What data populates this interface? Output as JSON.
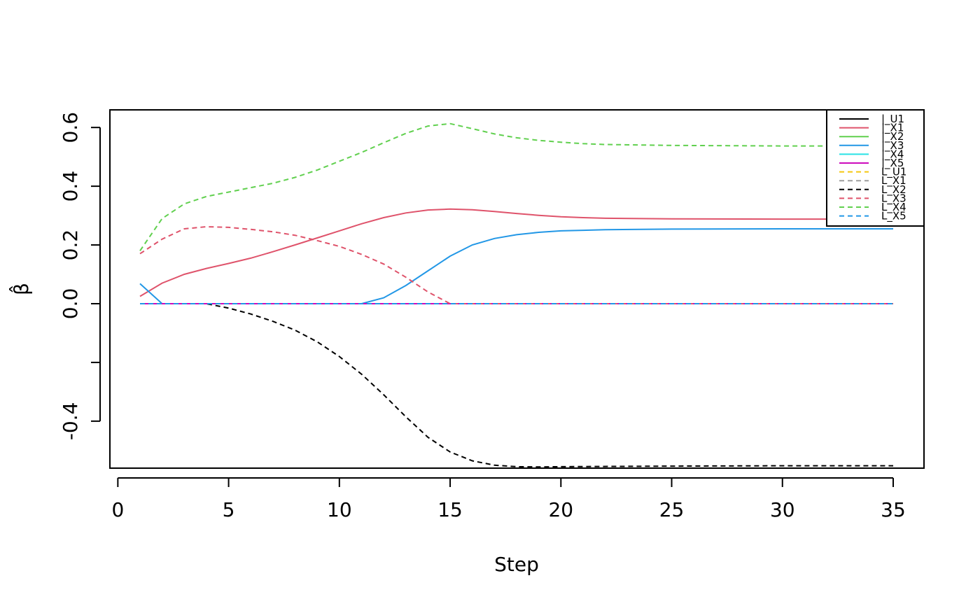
{
  "chart_data": {
    "type": "line",
    "title": "",
    "xlabel": "Step",
    "ylabel": "β̂",
    "xlim": [
      1,
      35
    ],
    "ylim": [
      -0.56,
      0.66
    ],
    "xticks": [
      0,
      5,
      10,
      15,
      20,
      25,
      30,
      35
    ],
    "xtick_labels": [
      "0",
      "5",
      "10",
      "15",
      "20",
      "25",
      "30",
      "35"
    ],
    "yticks": [
      -0.4,
      -0.2,
      0.0,
      0.2,
      0.4,
      0.6
    ],
    "ytick_labels": [
      "-0.4",
      "",
      "0.0",
      "0.2",
      "0.4",
      "0.6"
    ],
    "grid": false,
    "legend_position": "top-right",
    "series": [
      {
        "name": "|_U1",
        "color": "#000000",
        "dash": "solid",
        "x": [
          1,
          35
        ],
        "y": [
          0,
          0
        ]
      },
      {
        "name": "|_X1",
        "color": "#DF536B",
        "dash": "solid",
        "x": [
          1,
          2,
          3,
          4,
          5,
          6,
          7,
          8,
          9,
          10,
          11,
          12,
          13,
          14,
          15,
          16,
          17,
          18,
          19,
          20,
          21,
          22,
          25,
          30,
          35
        ],
        "y": [
          0.025,
          0.07,
          0.1,
          0.12,
          0.137,
          0.155,
          0.177,
          0.2,
          0.224,
          0.248,
          0.272,
          0.293,
          0.309,
          0.319,
          0.322,
          0.32,
          0.314,
          0.307,
          0.301,
          0.296,
          0.293,
          0.291,
          0.289,
          0.288,
          0.288
        ]
      },
      {
        "name": "|_X2",
        "color": "#61D04F",
        "dash": "solid",
        "x": [
          1,
          35
        ],
        "y": [
          0,
          0
        ]
      },
      {
        "name": "|_X3",
        "color": "#2297E6",
        "dash": "solid",
        "x": [
          1,
          2,
          3,
          10,
          11,
          12,
          13,
          14,
          15,
          16,
          17,
          18,
          19,
          20,
          21,
          22,
          25,
          30,
          35
        ],
        "y": [
          0.068,
          0,
          0,
          0,
          0,
          0.02,
          0.062,
          0.112,
          0.162,
          0.2,
          0.222,
          0.235,
          0.243,
          0.248,
          0.25,
          0.252,
          0.254,
          0.255,
          0.255
        ]
      },
      {
        "name": "|_X4",
        "color": "#28E2E5",
        "dash": "solid",
        "x": [
          1,
          35
        ],
        "y": [
          0,
          0
        ]
      },
      {
        "name": "|_X5",
        "color": "#CD0BBC",
        "dash": "solid",
        "x": [
          1,
          35
        ],
        "y": [
          0,
          0
        ]
      },
      {
        "name": "L_U1",
        "color": "#F5C710",
        "dash": "dashed",
        "x": [
          1,
          35
        ],
        "y": [
          0,
          0
        ]
      },
      {
        "name": "L_X1",
        "color": "#9E9E9E",
        "dash": "dashed",
        "x": [
          1,
          35
        ],
        "y": [
          0,
          0
        ]
      },
      {
        "name": "L_X2",
        "color": "#000000",
        "dash": "dashed",
        "x": [
          1,
          2,
          3,
          4,
          5,
          6,
          7,
          8,
          9,
          10,
          11,
          12,
          13,
          14,
          15,
          16,
          17,
          18,
          19,
          20,
          25,
          30,
          35
        ],
        "y": [
          0,
          0,
          0,
          0,
          -0.015,
          -0.035,
          -0.06,
          -0.09,
          -0.13,
          -0.18,
          -0.24,
          -0.31,
          -0.385,
          -0.455,
          -0.505,
          -0.535,
          -0.55,
          -0.555,
          -0.556,
          -0.555,
          -0.553,
          -0.552,
          -0.552
        ]
      },
      {
        "name": "L_X3",
        "color": "#DF536B",
        "dash": "dashed",
        "x": [
          1,
          2,
          3,
          4,
          5,
          6,
          7,
          8,
          9,
          10,
          11,
          12,
          13,
          14,
          15,
          35
        ],
        "y": [
          0.17,
          0.22,
          0.255,
          0.262,
          0.26,
          0.253,
          0.245,
          0.233,
          0.215,
          0.195,
          0.168,
          0.135,
          0.09,
          0.04,
          0,
          0
        ]
      },
      {
        "name": "L_X4",
        "color": "#61D04F",
        "dash": "dashed",
        "x": [
          1,
          2,
          3,
          4,
          5,
          6,
          7,
          8,
          9,
          10,
          11,
          12,
          13,
          14,
          15,
          16,
          17,
          18,
          19,
          20,
          21,
          22,
          25,
          30,
          35
        ],
        "y": [
          0.18,
          0.29,
          0.34,
          0.365,
          0.38,
          0.395,
          0.41,
          0.43,
          0.455,
          0.485,
          0.515,
          0.548,
          0.58,
          0.605,
          0.613,
          0.596,
          0.578,
          0.565,
          0.556,
          0.55,
          0.545,
          0.542,
          0.539,
          0.537,
          0.537
        ]
      },
      {
        "name": "L_X5",
        "color": "#2297E6",
        "dash": "dashed",
        "x": [
          1,
          35
        ],
        "y": [
          0,
          0
        ]
      }
    ]
  }
}
